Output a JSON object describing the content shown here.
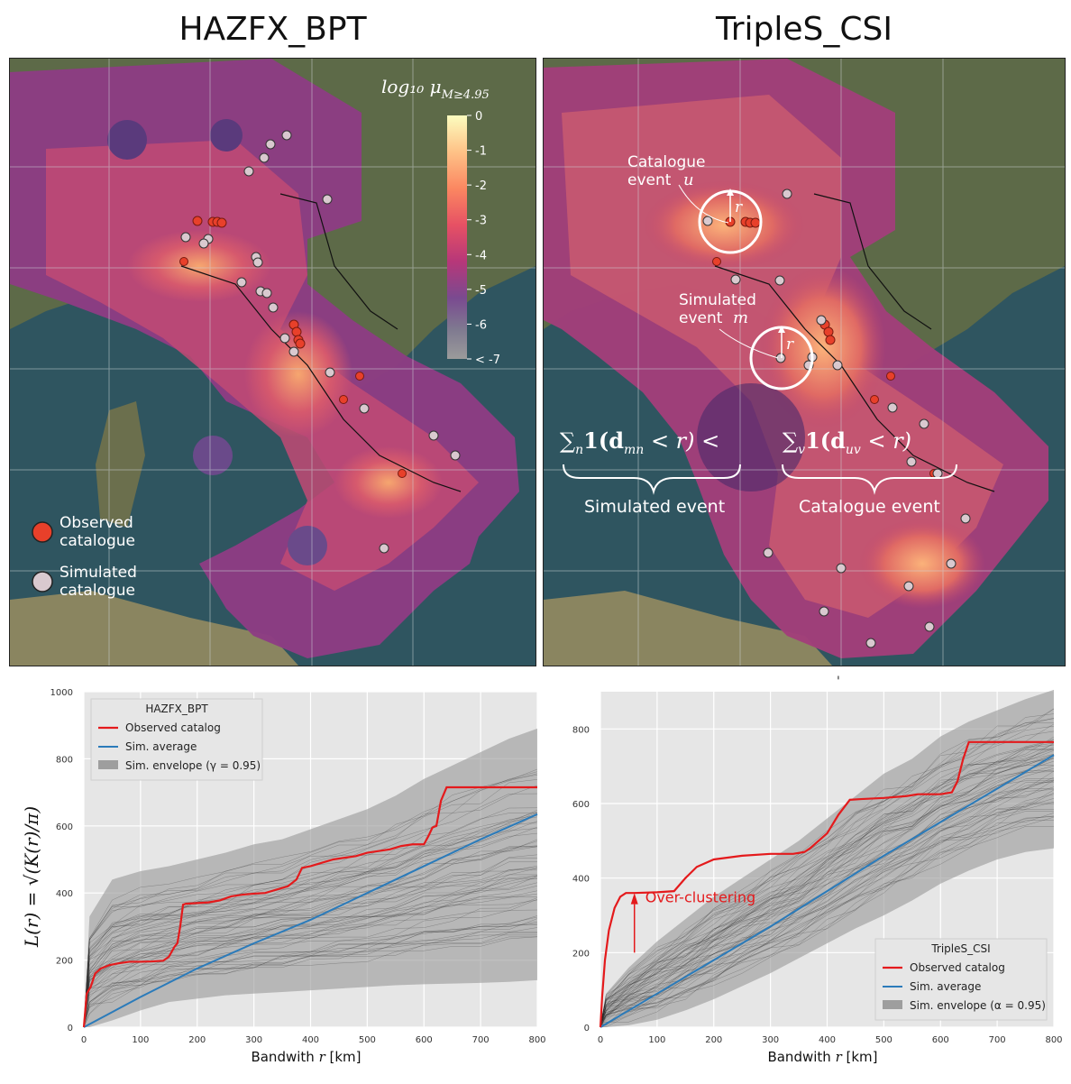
{
  "titles": {
    "left": "HAZFX_BPT",
    "right": "TripleS_CSI"
  },
  "colorbar": {
    "label": "log₁₀ μ",
    "label_sub": "M≥4.95",
    "ticks": [
      "0",
      "-1",
      "-2",
      "-3",
      "-4",
      "-5",
      "-6",
      "< -7"
    ],
    "colors": [
      "#fcfdbf",
      "#fec287",
      "#fb8761",
      "#e65164",
      "#b73779",
      "#8c2981",
      "#5c2a8e",
      "#9b9b9b"
    ]
  },
  "map_legend": {
    "observed": "Observed\ncatalogue",
    "observed_l1": "Observed",
    "observed_l2": "catalogue",
    "simulated_l1": "Simulated",
    "simulated_l2": "catalogue",
    "observed_color": "#e8402a",
    "simulated_color": "#d9c9cf"
  },
  "annotations": {
    "catalogue_event_l1": "Catalogue",
    "catalogue_event_l2": "event",
    "catalogue_event_var": "u",
    "simulated_event_l1": "Simulated",
    "simulated_event_l2": "event",
    "simulated_event_var": "m",
    "radius": "r",
    "formula_left": "∑",
    "formula_left_sub": "n",
    "formula_left_body": "1(d",
    "formula_left_dsub": "mn",
    "formula_left_tail": " < r) <",
    "formula_right": "∑",
    "formula_right_sub": "v",
    "formula_right_body": "1(d",
    "formula_right_dsub": "uv",
    "formula_right_tail": " < r)",
    "brace_left_label": "Simulated event",
    "brace_right_label": "Catalogue event",
    "over_clustering": "Over-clustering"
  },
  "charts_text": {
    "ylabel_left": "L(r) = √(K(r)/π)",
    "xlabel_word": "Bandwith",
    "xlabel_var": "r",
    "xlabel_unit": "[km]",
    "stray_mark": "'"
  },
  "chart_data": [
    {
      "type": "line",
      "legend_title": "HAZFX_BPT",
      "legend_placement": "top-left",
      "xlim": [
        0,
        800
      ],
      "ylim": [
        0,
        1000
      ],
      "xticks": [
        0,
        100,
        200,
        300,
        400,
        500,
        600,
        700,
        800
      ],
      "yticks": [
        0,
        200,
        400,
        600,
        800,
        1000
      ],
      "xlabel": "Bandwith r [km]",
      "ylabel": "L(r) = sqrt(K(r)/pi)",
      "grid": true,
      "series": [
        {
          "name": "Observed catalog",
          "color": "#e41a1c",
          "x": [
            0,
            5,
            12,
            20,
            30,
            45,
            60,
            80,
            100,
            120,
            140,
            150,
            160,
            165,
            170,
            175,
            180,
            200,
            220,
            240,
            260,
            280,
            300,
            320,
            340,
            360,
            375,
            385,
            400,
            420,
            440,
            460,
            480,
            500,
            520,
            540,
            560,
            580,
            600,
            608,
            615,
            622,
            630,
            640,
            660,
            700,
            800
          ],
          "y": [
            0,
            100,
            120,
            160,
            175,
            185,
            190,
            195,
            195,
            196,
            198,
            210,
            240,
            250,
            300,
            365,
            368,
            370,
            372,
            378,
            390,
            395,
            398,
            400,
            410,
            420,
            440,
            475,
            480,
            490,
            500,
            505,
            510,
            520,
            525,
            530,
            540,
            545,
            545,
            570,
            595,
            600,
            675,
            715,
            715,
            715,
            715
          ]
        },
        {
          "name": "Sim. average",
          "color": "#2b7bba",
          "x": [
            0,
            100,
            200,
            300,
            400,
            500,
            600,
            700,
            800
          ],
          "y": [
            0,
            90,
            175,
            250,
            320,
            400,
            480,
            560,
            635
          ]
        },
        {
          "name": "Sim. envelope (γ = 0.95)",
          "color": "#9e9e9e",
          "x": [
            0,
            10,
            50,
            100,
            150,
            200,
            250,
            300,
            350,
            400,
            450,
            500,
            550,
            600,
            650,
            700,
            750,
            800
          ],
          "upper": [
            0,
            330,
            440,
            465,
            480,
            500,
            520,
            545,
            560,
            590,
            620,
            650,
            690,
            740,
            780,
            820,
            860,
            890
          ],
          "lower": [
            0,
            0,
            20,
            50,
            75,
            85,
            95,
            100,
            105,
            110,
            115,
            120,
            125,
            128,
            130,
            132,
            135,
            140
          ]
        }
      ]
    },
    {
      "type": "line",
      "legend_title": "TripleS_CSI",
      "legend_placement": "bottom-right",
      "xlim": [
        0,
        800
      ],
      "ylim": [
        0,
        900
      ],
      "xticks": [
        0,
        100,
        200,
        300,
        400,
        500,
        600,
        700,
        800
      ],
      "yticks": [
        0,
        200,
        400,
        600,
        800
      ],
      "xlabel": "Bandwith r [km]",
      "ylabel": "",
      "grid": true,
      "series": [
        {
          "name": "Observed catalog",
          "color": "#e41a1c",
          "x": [
            0,
            3,
            8,
            15,
            25,
            35,
            45,
            60,
            100,
            130,
            150,
            170,
            200,
            250,
            300,
            340,
            360,
            370,
            385,
            400,
            420,
            440,
            460,
            500,
            540,
            560,
            600,
            620,
            630,
            640,
            650,
            660,
            700,
            800
          ],
          "y": [
            0,
            80,
            180,
            260,
            320,
            350,
            360,
            360,
            362,
            365,
            400,
            430,
            450,
            460,
            465,
            465,
            470,
            480,
            500,
            520,
            570,
            610,
            612,
            615,
            620,
            625,
            625,
            630,
            660,
            720,
            765,
            765,
            765,
            765
          ]
        },
        {
          "name": "Sim. average",
          "color": "#2b7bba",
          "x": [
            0,
            100,
            200,
            300,
            400,
            500,
            600,
            700,
            800
          ],
          "y": [
            0,
            90,
            180,
            270,
            365,
            460,
            550,
            640,
            730
          ]
        },
        {
          "name": "Sim. envelope (α = 0.95)",
          "color": "#9e9e9e",
          "x": [
            0,
            10,
            50,
            100,
            150,
            200,
            250,
            300,
            350,
            400,
            450,
            500,
            550,
            600,
            650,
            700,
            750,
            800
          ],
          "upper": [
            0,
            90,
            160,
            230,
            290,
            350,
            400,
            450,
            500,
            560,
            620,
            680,
            720,
            780,
            820,
            850,
            880,
            905
          ],
          "lower": [
            0,
            0,
            5,
            20,
            45,
            75,
            110,
            145,
            185,
            225,
            265,
            300,
            340,
            385,
            420,
            450,
            470,
            480
          ]
        }
      ]
    }
  ]
}
